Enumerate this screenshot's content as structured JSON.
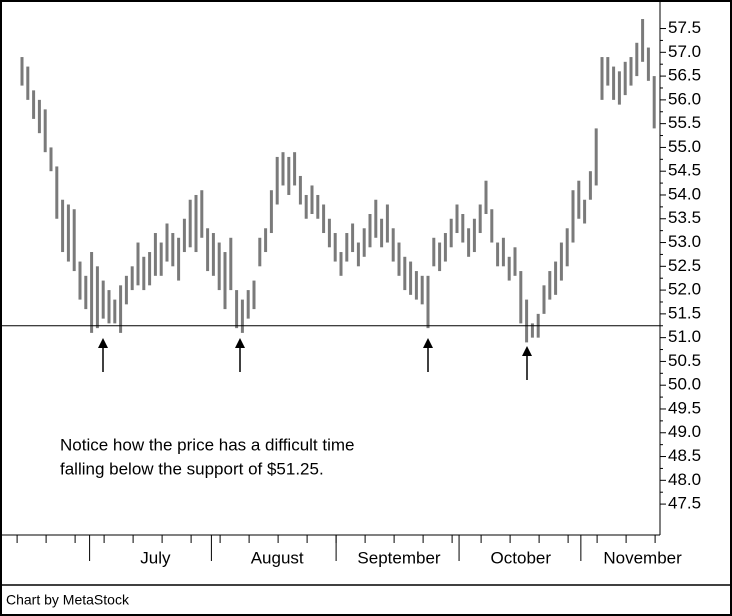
{
  "chart_data": {
    "type": "range",
    "annotation": [
      "Notice how the price has a difficult time",
      "falling below the support of $51.25."
    ],
    "footer": "Chart by MetaStock",
    "support": 51.25,
    "color": "#7a7a7a",
    "ylim": [
      46.85,
      58.1
    ],
    "yticks": [
      47.5,
      {
        "value": 48,
        "label": "48.0"
      },
      48.5,
      {
        "value": 49,
        "label": "49.0"
      },
      49.5,
      {
        "value": 50,
        "label": "50.0"
      },
      50.5,
      {
        "value": 51,
        "label": "51.0"
      },
      51.5,
      {
        "value": 52,
        "label": "52.0"
      },
      52.5,
      {
        "value": 53,
        "label": "53.0"
      },
      53.5,
      {
        "value": 54,
        "label": "54.0"
      },
      54.5,
      {
        "value": 55,
        "label": "55.0"
      },
      55.5,
      {
        "value": 56,
        "label": "56.0"
      },
      56.5,
      {
        "value": 57,
        "label": "57.0"
      },
      57.5
    ],
    "categories": [
      null,
      null,
      null,
      null,
      null,
      null,
      null,
      null,
      null,
      null,
      null,
      null,
      null,
      null,
      null,
      null,
      null,
      null,
      null,
      null,
      null,
      null,
      null,
      "July",
      null,
      null,
      null,
      null,
      null,
      null,
      null,
      null,
      null,
      null,
      null,
      null,
      null,
      null,
      null,
      null,
      null,
      null,
      null,
      null,
      "August",
      null,
      null,
      null,
      null,
      null,
      null,
      null,
      null,
      null,
      null,
      null,
      null,
      null,
      null,
      null,
      null,
      null,
      null,
      null,
      null,
      "September",
      null,
      null,
      null,
      null,
      null,
      null,
      null,
      null,
      null,
      null,
      null,
      null,
      null,
      null,
      null,
      null,
      null,
      null,
      null,
      null,
      "October",
      null,
      null,
      null,
      null,
      null,
      null,
      null,
      null,
      null,
      null,
      null,
      null,
      null,
      null,
      null,
      null,
      null,
      null,
      null,
      null,
      "November",
      null,
      null
    ],
    "high": [
      56.9,
      56.7,
      56.2,
      56.0,
      55.8,
      55.0,
      54.6,
      53.9,
      53.8,
      53.7,
      52.6,
      52.3,
      52.8,
      52.5,
      52.2,
      52.0,
      51.8,
      52.1,
      52.3,
      52.5,
      53.0,
      52.7,
      52.8,
      53.2,
      53.0,
      53.4,
      53.2,
      53.1,
      53.5,
      53.9,
      54.0,
      54.1,
      53.3,
      53.2,
      53.0,
      52.8,
      53.1,
      52.0,
      51.8,
      52.0,
      52.2,
      53.1,
      53.3,
      54.1,
      54.8,
      54.9,
      54.8,
      54.9,
      54.4,
      54.0,
      54.2,
      54.0,
      53.8,
      53.5,
      53.2,
      52.8,
      53.2,
      53.4,
      53.0,
      53.3,
      53.6,
      53.9,
      53.5,
      53.8,
      53.3,
      53.0,
      52.7,
      52.6,
      52.4,
      52.3,
      52.3,
      53.1,
      53.0,
      53.2,
      53.5,
      53.8,
      53.6,
      53.3,
      53.5,
      53.8,
      54.3,
      53.7,
      53.0,
      53.1,
      52.7,
      52.9,
      52.4,
      51.8,
      51.3,
      51.5,
      52.1,
      52.4,
      52.6,
      53.0,
      53.3,
      54.1,
      54.3,
      53.9,
      54.5,
      55.4,
      56.9,
      56.9,
      56.7,
      56.6,
      56.8,
      56.9,
      57.2,
      57.7,
      57.1,
      56.5
    ],
    "low": [
      56.3,
      56.0,
      55.6,
      55.3,
      54.9,
      54.5,
      53.5,
      52.8,
      52.6,
      52.4,
      51.8,
      51.6,
      51.1,
      51.2,
      51.4,
      51.3,
      51.3,
      51.1,
      51.7,
      52.0,
      52.1,
      52.0,
      52.1,
      52.3,
      52.3,
      52.6,
      52.5,
      52.2,
      52.8,
      52.9,
      52.8,
      53.1,
      52.4,
      52.3,
      52.0,
      51.6,
      52.0,
      51.2,
      51.1,
      51.4,
      51.6,
      52.5,
      52.8,
      53.2,
      53.8,
      54.2,
      54.0,
      54.2,
      53.8,
      53.5,
      53.6,
      53.5,
      53.2,
      52.9,
      52.6,
      52.3,
      52.6,
      52.8,
      52.5,
      52.7,
      52.9,
      53.1,
      52.9,
      53.0,
      52.6,
      52.3,
      52.0,
      51.9,
      51.8,
      51.7,
      51.2,
      52.5,
      52.4,
      52.6,
      52.9,
      53.2,
      53.0,
      52.7,
      52.8,
      53.2,
      53.6,
      53.0,
      52.5,
      52.5,
      52.2,
      52.3,
      51.3,
      50.9,
      51.0,
      51.0,
      51.5,
      51.8,
      51.9,
      52.2,
      52.5,
      53.0,
      53.5,
      53.4,
      53.9,
      54.2,
      56.0,
      56.3,
      56.0,
      55.9,
      56.1,
      56.3,
      56.5,
      56.8,
      56.4,
      55.4
    ]
  }
}
